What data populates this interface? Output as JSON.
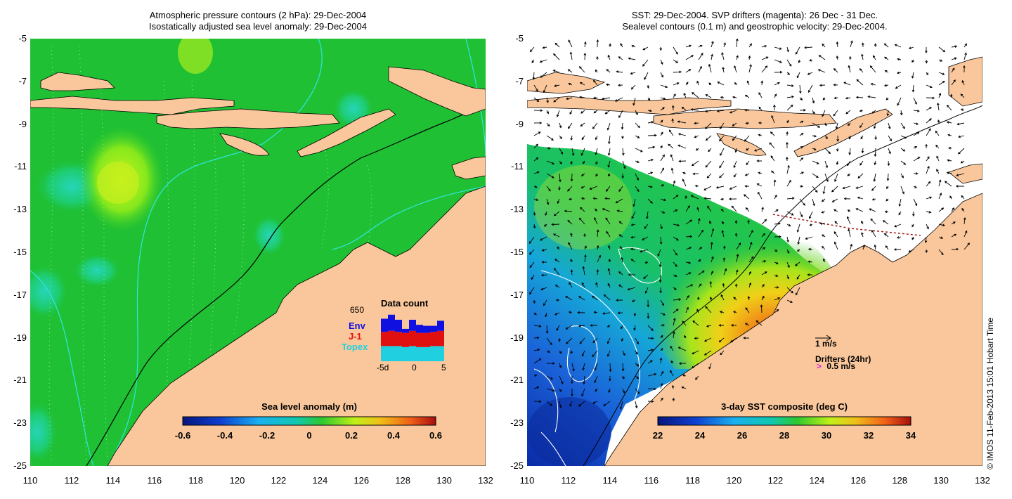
{
  "left_panel": {
    "title_line1": "Atmospheric pressure contours (2 hPa): 29-Dec-2004",
    "title_line2": "Isostatically adjusted sea level anomaly: 29-Dec-2004",
    "colorbar_title": "Sea level anomaly (m)",
    "colorbar_ticks": [
      "-0.6",
      "-0.4",
      "-0.2",
      "0",
      "0.2",
      "0.4",
      "0.6"
    ],
    "data_count": {
      "title": "Data count",
      "max_label": "650",
      "legend": [
        {
          "label": "Env",
          "color": "#1010e0"
        },
        {
          "label": "J-1",
          "color": "#e01010"
        },
        {
          "label": "Topex",
          "color": "#20d0e0"
        }
      ],
      "x_labels": [
        "-5d",
        "0",
        "5"
      ],
      "bars": [
        {
          "topex": 0.3,
          "j1": 0.28,
          "env": 0.26
        },
        {
          "topex": 0.3,
          "j1": 0.3,
          "env": 0.32
        },
        {
          "topex": 0.3,
          "j1": 0.28,
          "env": 0.24
        },
        {
          "topex": 0.28,
          "j1": 0.28,
          "env": 0.08
        },
        {
          "topex": 0.3,
          "j1": 0.3,
          "env": 0.22
        },
        {
          "topex": 0.28,
          "j1": 0.28,
          "env": 0.16
        },
        {
          "topex": 0.28,
          "j1": 0.28,
          "env": 0.14
        },
        {
          "topex": 0.3,
          "j1": 0.28,
          "env": 0.12
        },
        {
          "topex": 0.3,
          "j1": 0.3,
          "env": 0.2
        }
      ]
    }
  },
  "right_panel": {
    "title_line1": "SST: 29-Dec-2004. SVP drifters (magenta): 26 Dec - 31 Dec.",
    "title_line2": "Sealevel contours (0.1 m) and geostrophic velocity: 29-Dec-2004.",
    "colorbar_title": "3-day SST composite (deg C)",
    "colorbar_ticks": [
      "22",
      "24",
      "26",
      "28",
      "30",
      "32",
      "34"
    ],
    "velocity_scale_label": "1 m/s",
    "drifters_label": "Drifters (24hr)",
    "drifters_speed_label": "0.5 m/s",
    "drifter_marker": ">"
  },
  "axes": {
    "lat_ticks": [
      "-5",
      "-7",
      "-9",
      "-11",
      "-13",
      "-15",
      "-17",
      "-19",
      "-21",
      "-23",
      "-25"
    ],
    "lon_ticks": [
      "110",
      "112",
      "114",
      "116",
      "118",
      "120",
      "122",
      "124",
      "126",
      "128",
      "130",
      "132"
    ]
  },
  "credit": "© IMOS 11-Feb-2013 15:01 Hobart Time",
  "colors": {
    "land": "#f9c79b",
    "ocean_anomaly": "#1fc033",
    "no_data": "#ffffff"
  }
}
